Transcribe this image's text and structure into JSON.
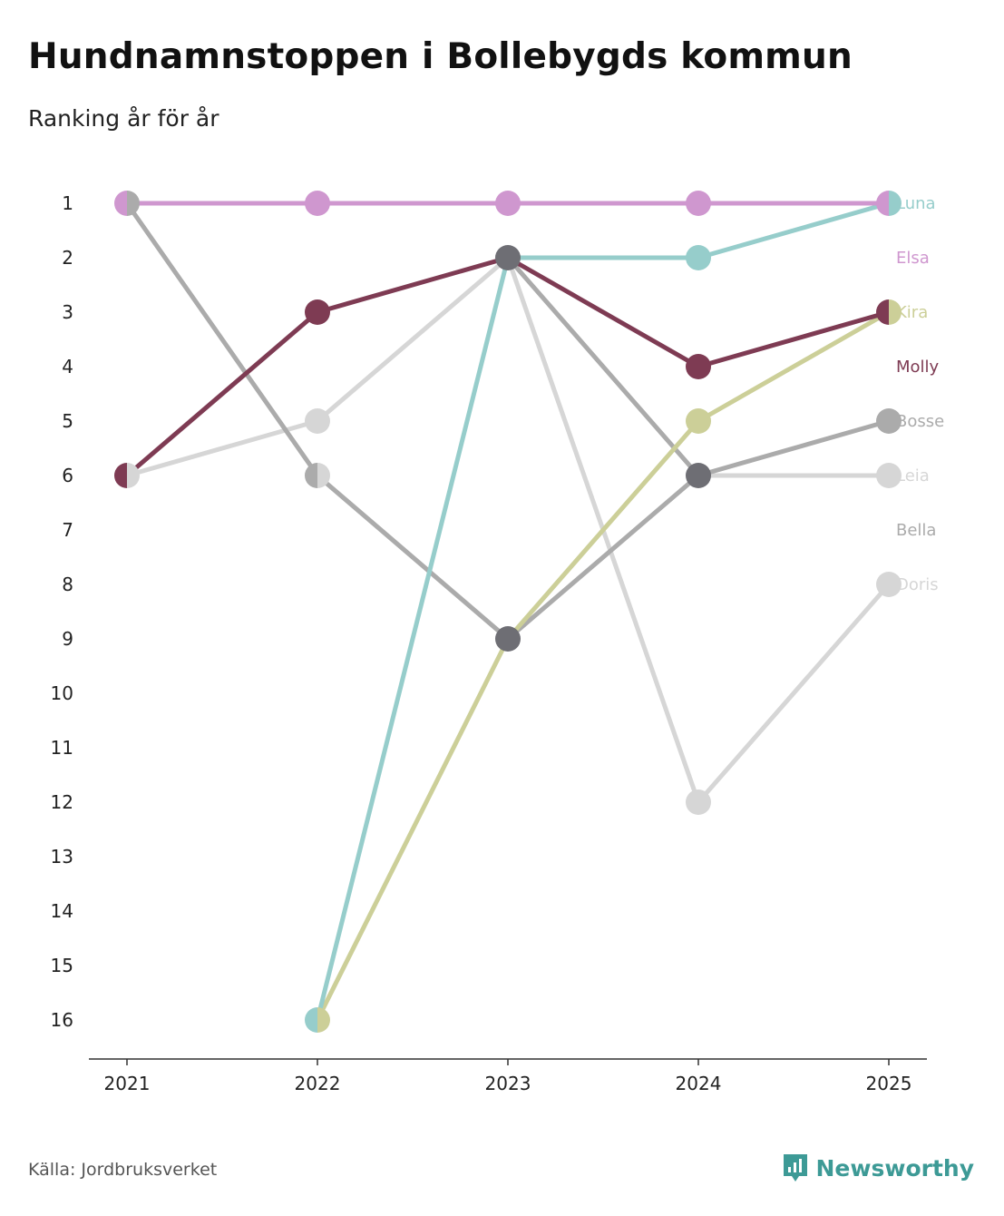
{
  "title": "Hundnamnstoppen i Bollebygds kommun",
  "subtitle": "Ranking år för år",
  "source": "Källa: Jordbruksverket",
  "brand": {
    "name": "Newsworthy",
    "color": "#3d9a96",
    "icon": "newsworthy-logo-icon"
  },
  "chart_data": {
    "type": "line",
    "chart_style": "bump",
    "title": "Hundnamnstoppen i Bollebygds kommun",
    "subtitle": "Ranking år för år",
    "xlabel": "",
    "ylabel": "",
    "x": [
      "2021",
      "2022",
      "2023",
      "2024",
      "2025"
    ],
    "y_ticks": [
      "1",
      "2",
      "3",
      "4",
      "5",
      "6",
      "7",
      "8",
      "9",
      "10",
      "11",
      "12",
      "13",
      "14",
      "15",
      "16"
    ],
    "ylim": [
      1,
      16
    ],
    "y_inverted": true,
    "series": [
      {
        "name": "Doris",
        "color": "#d6d6d6",
        "values": [
          6,
          5,
          2,
          12,
          8
        ]
      },
      {
        "name": "Leia",
        "color": "#d6d6d6",
        "values": [
          null,
          6,
          9,
          6,
          6
        ]
      },
      {
        "name": "Bella",
        "color": "#ababab",
        "values": [
          1,
          6,
          9,
          6,
          null
        ]
      },
      {
        "name": "Bosse",
        "color": "#ababab",
        "values": [
          null,
          null,
          2,
          6,
          5
        ]
      },
      {
        "name": "Kira",
        "color": "#cccf98",
        "values": [
          null,
          16,
          9,
          5,
          3
        ]
      },
      {
        "name": "Luna",
        "color": "#96cdcb",
        "values": [
          null,
          16,
          2,
          2,
          1
        ]
      },
      {
        "name": "Molly",
        "color": "#7e3b53",
        "values": [
          6,
          3,
          2,
          4,
          3
        ]
      },
      {
        "name": "Elsa",
        "color": "#cf97cf",
        "values": [
          1,
          1,
          1,
          1,
          1
        ]
      }
    ],
    "end_labels": [
      "Luna",
      "Elsa",
      "Kira",
      "Molly",
      "Bosse",
      "Leia",
      "Bella",
      "Doris"
    ],
    "shared_marker_color": "#6e6e74"
  }
}
